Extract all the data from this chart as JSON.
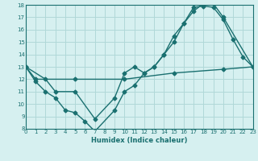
{
  "xlabel": "Humidex (Indice chaleur)",
  "bg_color": "#d6f0f0",
  "grid_color": "#b0d8d8",
  "line_color": "#1a7070",
  "xlim": [
    0,
    23
  ],
  "ylim": [
    8,
    18
  ],
  "xticks": [
    0,
    1,
    2,
    3,
    4,
    5,
    6,
    7,
    8,
    9,
    10,
    11,
    12,
    13,
    14,
    15,
    16,
    17,
    18,
    19,
    20,
    21,
    22,
    23
  ],
  "yticks": [
    8,
    9,
    10,
    11,
    12,
    13,
    14,
    15,
    16,
    17,
    18
  ],
  "line1_x": [
    0,
    1,
    2,
    3,
    4,
    5,
    6,
    7,
    9,
    10,
    11,
    12,
    13,
    14,
    15,
    16,
    17,
    18,
    19,
    20,
    21,
    22,
    23
  ],
  "line1_y": [
    13,
    11.8,
    11,
    10.5,
    9.5,
    9.3,
    8.6,
    7.8,
    9.5,
    11,
    11.5,
    12.5,
    13,
    14,
    15.5,
    16.5,
    17.8,
    17.9,
    17.8,
    16.8,
    15.2,
    13.8,
    13
  ],
  "line2_x": [
    0,
    2,
    3,
    5,
    7,
    9,
    10,
    11,
    12,
    13,
    14,
    15,
    16,
    17,
    18,
    19,
    20,
    23
  ],
  "line2_y": [
    13,
    12,
    11,
    11,
    8.8,
    10.5,
    12.5,
    13,
    12.5,
    13,
    14,
    15,
    16.5,
    17.5,
    18.1,
    18.1,
    17,
    13
  ],
  "line3_x": [
    0,
    1,
    5,
    10,
    15,
    20,
    23
  ],
  "line3_y": [
    13,
    12,
    12,
    12,
    12.5,
    12.8,
    13
  ],
  "marker": "D",
  "markersize": 2.5,
  "linewidth": 1.0
}
